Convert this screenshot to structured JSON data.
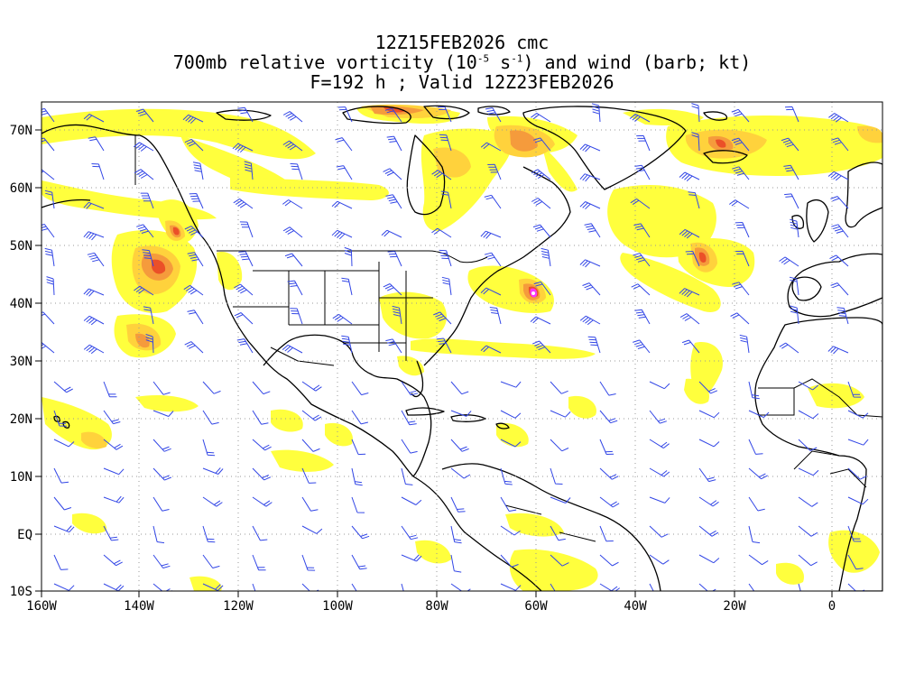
{
  "title": {
    "line1": "12Z15FEB2026 cmc",
    "line2_prefix": "700mb relative vorticity (10",
    "line2_exp1": "-5",
    "line2_mid": " s",
    "line2_exp2": "-1",
    "line2_suffix": ") and wind (barb; kt)",
    "line3": "F=192 h ; Valid 12Z23FEB2026"
  },
  "axes": {
    "lon_labels": [
      "160W",
      "140W",
      "120W",
      "100W",
      "80W",
      "60W",
      "40W",
      "20W",
      "0"
    ],
    "lat_labels": [
      "70N",
      "60N",
      "50N",
      "40N",
      "30N",
      "20N",
      "10N",
      "EQ",
      "10S"
    ]
  },
  "colors": {
    "shade_light": "#ffff33",
    "shade_mid": "#ffd23c",
    "shade_orange": "#f59b3c",
    "shade_red": "#eb5028",
    "shade_peak": "#ff33ff",
    "barb_color": "#3246e6",
    "coast_color": "#000000",
    "grid_color": "#999999"
  }
}
